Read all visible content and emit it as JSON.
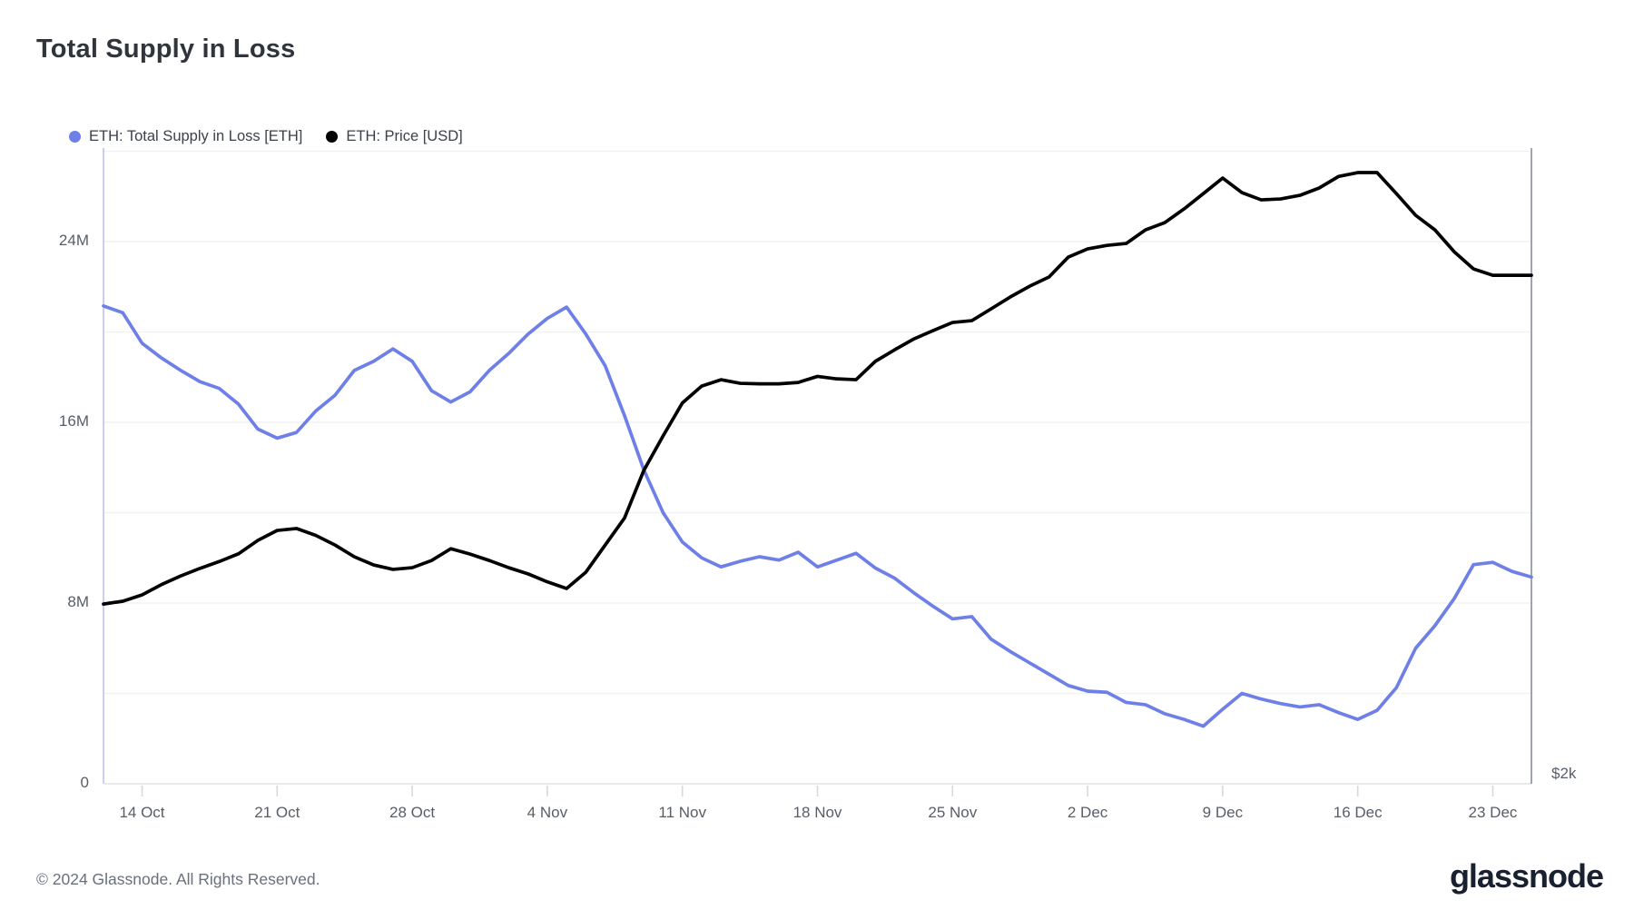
{
  "title": "Total Supply in Loss",
  "legend": {
    "supply_label": "ETH: Total Supply in Loss [ETH]",
    "price_label": "ETH: Price [USD]"
  },
  "footer": {
    "copyright": "© 2024 Glassnode. All Rights Reserved.",
    "brand": "glassnode"
  },
  "chart_data": {
    "type": "line",
    "title": "Total Supply in Loss",
    "grid": "horizontal-only",
    "legend_position": "top-left",
    "x_axis": {
      "days_total": 74,
      "start_date": "12 Oct",
      "end_date": "25 Dec",
      "tick_labels": [
        {
          "label": "14 Oct",
          "day": 2
        },
        {
          "label": "21 Oct",
          "day": 9
        },
        {
          "label": "28 Oct",
          "day": 16
        },
        {
          "label": "4 Nov",
          "day": 23
        },
        {
          "label": "11 Nov",
          "day": 30
        },
        {
          "label": "18 Nov",
          "day": 37
        },
        {
          "label": "25 Nov",
          "day": 44
        },
        {
          "label": "2 Dec",
          "day": 51
        },
        {
          "label": "9 Dec",
          "day": 58
        },
        {
          "label": "16 Dec",
          "day": 65
        },
        {
          "label": "23 Dec",
          "day": 72
        }
      ]
    },
    "left_axis": {
      "unit": "ETH, millions",
      "min": 0,
      "max": 28.1,
      "tick_labels": [
        {
          "label": "24M",
          "value": 24
        },
        {
          "label": "16M",
          "value": 16
        },
        {
          "label": "8M",
          "value": 8
        },
        {
          "label": "0",
          "value": 0
        }
      ],
      "gridline_values": [
        28,
        24,
        20,
        16,
        12,
        8,
        4
      ]
    },
    "right_axis": {
      "label": "$2k",
      "scale": "log",
      "bottom_value": 2000,
      "top_value": 4130
    },
    "series": [
      {
        "name": "ETH: Total Supply in Loss [ETH]",
        "axis": "left",
        "unit": "million ETH",
        "color": "#6e7fe8",
        "points": [
          [
            0,
            21.15
          ],
          [
            1,
            20.85
          ],
          [
            2,
            19.5
          ],
          [
            3,
            18.85
          ],
          [
            4,
            18.3
          ],
          [
            5,
            17.8
          ],
          [
            6,
            17.5
          ],
          [
            7,
            16.8
          ],
          [
            8,
            15.7
          ],
          [
            9,
            15.3
          ],
          [
            10,
            15.55
          ],
          [
            11,
            16.5
          ],
          [
            12,
            17.2
          ],
          [
            13,
            18.3
          ],
          [
            14,
            18.7
          ],
          [
            15,
            19.25
          ],
          [
            16,
            18.7
          ],
          [
            17,
            17.4
          ],
          [
            18,
            16.9
          ],
          [
            19,
            17.35
          ],
          [
            20,
            18.3
          ],
          [
            21,
            19.05
          ],
          [
            22,
            19.9
          ],
          [
            23,
            20.6
          ],
          [
            24,
            21.1
          ],
          [
            25,
            19.9
          ],
          [
            26,
            18.5
          ],
          [
            27,
            16.3
          ],
          [
            28,
            13.9
          ],
          [
            29,
            12.0
          ],
          [
            30,
            10.7
          ],
          [
            31,
            10.0
          ],
          [
            32,
            9.6
          ],
          [
            33,
            9.85
          ],
          [
            34,
            10.05
          ],
          [
            35,
            9.9
          ],
          [
            36,
            10.25
          ],
          [
            37,
            9.6
          ],
          [
            38,
            9.9
          ],
          [
            39,
            10.2
          ],
          [
            40,
            9.55
          ],
          [
            41,
            9.1
          ],
          [
            42,
            8.45
          ],
          [
            43,
            7.85
          ],
          [
            44,
            7.3
          ],
          [
            45,
            7.4
          ],
          [
            46,
            6.4
          ],
          [
            47,
            5.85
          ],
          [
            48,
            5.35
          ],
          [
            49,
            4.85
          ],
          [
            50,
            4.35
          ],
          [
            51,
            4.1
          ],
          [
            52,
            4.05
          ],
          [
            53,
            3.6
          ],
          [
            54,
            3.5
          ],
          [
            55,
            3.1
          ],
          [
            56,
            2.85
          ],
          [
            57,
            2.55
          ],
          [
            58,
            3.3
          ],
          [
            59,
            4.0
          ],
          [
            60,
            3.75
          ],
          [
            61,
            3.55
          ],
          [
            62,
            3.4
          ],
          [
            63,
            3.5
          ],
          [
            64,
            3.15
          ],
          [
            65,
            2.85
          ],
          [
            66,
            3.25
          ],
          [
            67,
            4.25
          ],
          [
            68,
            6.0
          ],
          [
            69,
            7.0
          ],
          [
            70,
            8.2
          ],
          [
            71,
            9.7
          ],
          [
            72,
            9.8
          ],
          [
            73,
            9.4
          ],
          [
            74,
            9.15
          ]
        ]
      },
      {
        "name": "ETH: Price [USD]",
        "axis": "right",
        "unit": "USD",
        "color": "#000000",
        "points": [
          [
            0,
            2455
          ],
          [
            1,
            2463
          ],
          [
            2,
            2481
          ],
          [
            3,
            2510
          ],
          [
            4,
            2535
          ],
          [
            5,
            2557
          ],
          [
            6,
            2577
          ],
          [
            7,
            2600
          ],
          [
            8,
            2640
          ],
          [
            9,
            2670
          ],
          [
            10,
            2676
          ],
          [
            11,
            2655
          ],
          [
            12,
            2626
          ],
          [
            13,
            2591
          ],
          [
            14,
            2567
          ],
          [
            15,
            2554
          ],
          [
            16,
            2559
          ],
          [
            17,
            2580
          ],
          [
            18,
            2615
          ],
          [
            19,
            2599
          ],
          [
            20,
            2580
          ],
          [
            21,
            2559
          ],
          [
            22,
            2541
          ],
          [
            23,
            2518
          ],
          [
            24,
            2499
          ],
          [
            25,
            2546
          ],
          [
            26,
            2626
          ],
          [
            27,
            2708
          ],
          [
            28,
            2859
          ],
          [
            29,
            2974
          ],
          [
            30,
            3088
          ],
          [
            31,
            3148
          ],
          [
            32,
            3171
          ],
          [
            33,
            3158
          ],
          [
            34,
            3156
          ],
          [
            35,
            3156
          ],
          [
            36,
            3161
          ],
          [
            37,
            3183
          ],
          [
            38,
            3174
          ],
          [
            39,
            3171
          ],
          [
            40,
            3238
          ],
          [
            41,
            3281
          ],
          [
            42,
            3322
          ],
          [
            43,
            3354
          ],
          [
            44,
            3385
          ],
          [
            45,
            3392
          ],
          [
            46,
            3438
          ],
          [
            47,
            3485
          ],
          [
            48,
            3528
          ],
          [
            49,
            3565
          ],
          [
            50,
            3647
          ],
          [
            51,
            3681
          ],
          [
            52,
            3696
          ],
          [
            53,
            3704
          ],
          [
            54,
            3762
          ],
          [
            55,
            3793
          ],
          [
            56,
            3853
          ],
          [
            57,
            3921
          ],
          [
            58,
            3991
          ],
          [
            59,
            3925
          ],
          [
            60,
            3893
          ],
          [
            61,
            3897
          ],
          [
            62,
            3913
          ],
          [
            63,
            3946
          ],
          [
            64,
            3998
          ],
          [
            65,
            4016
          ],
          [
            66,
            4016
          ],
          [
            67,
            3921
          ],
          [
            68,
            3825
          ],
          [
            69,
            3762
          ],
          [
            70,
            3669
          ],
          [
            71,
            3598
          ],
          [
            72,
            3572
          ],
          [
            73,
            3572
          ],
          [
            74,
            3572
          ]
        ]
      }
    ]
  }
}
